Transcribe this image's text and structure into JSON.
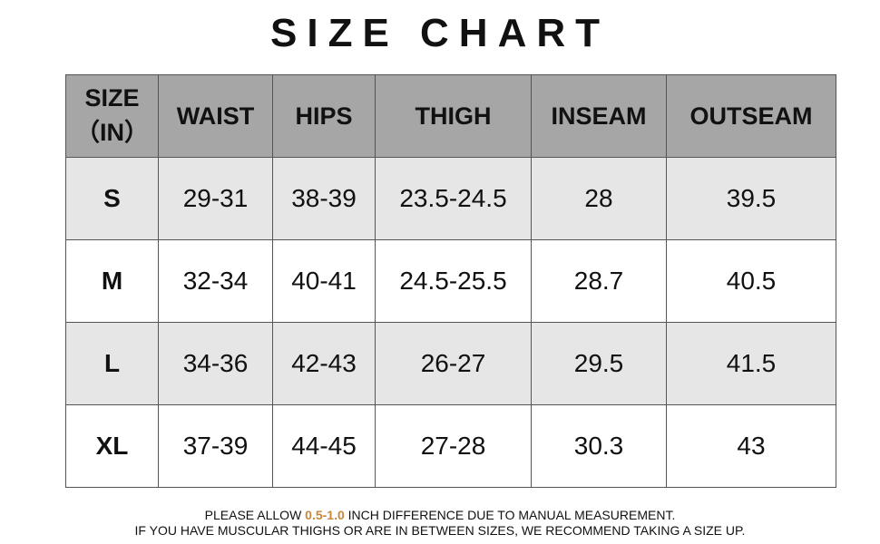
{
  "header": {
    "title": "SIZE CHART"
  },
  "table": {
    "size_header": {
      "line1": "SIZE",
      "line2": "（IN）"
    },
    "columns": [
      "WAIST",
      "HIPS",
      "THIGH",
      "INSEAM",
      "OUTSEAM"
    ],
    "rows": [
      [
        "S",
        "29-31",
        "38-39",
        "23.5-24.5",
        "28",
        "39.5"
      ],
      [
        "M",
        "32-34",
        "40-41",
        "24.5-25.5",
        "28.7",
        "40.5"
      ],
      [
        "L",
        "34-36",
        "42-43",
        "26-27",
        "29.5",
        "41.5"
      ],
      [
        "XL",
        "37-39",
        "44-45",
        "27-28",
        "30.3",
        "43"
      ]
    ]
  },
  "footer": {
    "line1_start": "PLEASE ALLOW",
    "line1_highlight": "0.5-1.0",
    "line1_end": "INCH DIFFERENCE DUE TO MANUAL MEASUREMENT.",
    "line2": "IF YOU HAVE MUSCULAR THIGHS OR ARE IN BETWEEN SIZES, WE RECOMMEND TAKING A SIZE UP."
  }
}
